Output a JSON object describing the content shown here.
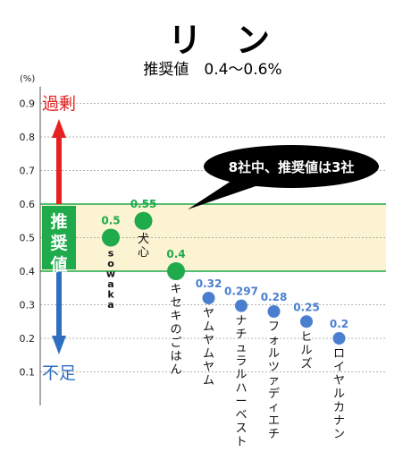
{
  "chart_data": {
    "type": "scatter",
    "title": "リ　ン",
    "subtitle": "推奨値　0.4～0.6%",
    "ylabel": "(%)",
    "ylim": [
      0,
      0.95
    ],
    "yticks": [
      "0.1",
      "0.2",
      "0.3",
      "0.4",
      "0.5",
      "0.6",
      "0.7",
      "0.8",
      "0.9"
    ],
    "grid": true,
    "recommended_range": [
      0.4,
      0.6
    ],
    "recommended_label": "推奨値",
    "excess_label": "過剰",
    "deficit_label": "不足",
    "callout": "8社中、推奨値は3社",
    "points": [
      {
        "brand": "sowaka",
        "value": 0.5,
        "value_label": "0.5",
        "in_range": true
      },
      {
        "brand": "犬心",
        "value": 0.55,
        "value_label": "0.55",
        "in_range": true
      },
      {
        "brand": "キセキのごはん",
        "value": 0.4,
        "value_label": "0.4",
        "in_range": true
      },
      {
        "brand": "ヤムヤムヤム",
        "value": 0.32,
        "value_label": "0.32",
        "in_range": false
      },
      {
        "brand": "ナチュラルハーベスト",
        "value": 0.297,
        "value_label": "0.297",
        "in_range": false
      },
      {
        "brand": "フォルツァディエチ",
        "value": 0.28,
        "value_label": "0.28",
        "in_range": false
      },
      {
        "brand": "ヒルズ",
        "value": 0.25,
        "value_label": "0.25",
        "in_range": false
      },
      {
        "brand": "ロイヤルカナン",
        "value": 0.2,
        "value_label": "0.2",
        "in_range": false
      }
    ],
    "colors": {
      "in_range": "#1faa4b",
      "out_range": "#4a7fcf",
      "band_fill": "#fbf3d2",
      "band_line": "#1faa4b",
      "excess": "#e62121",
      "deficit": "#2f6fbf",
      "grid": "#9a9a9a",
      "callout_bg": "#000000",
      "callout_text": "#ffffff"
    }
  }
}
